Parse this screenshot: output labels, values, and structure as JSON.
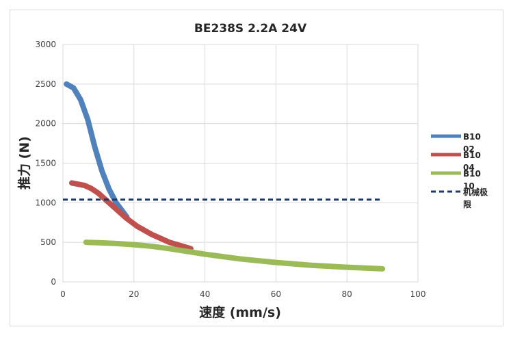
{
  "chart_data": {
    "type": "line",
    "title": "BE238S 2.2A 24V",
    "xlabel": "速度 (mm/s)",
    "ylabel": "推力 (N)",
    "xlim": [
      0,
      100
    ],
    "ylim": [
      0,
      3000
    ],
    "x_ticks": [
      "0",
      "20",
      "40",
      "60",
      "80",
      "100"
    ],
    "y_ticks": [
      "0",
      "500",
      "1000",
      "1500",
      "2000",
      "2500",
      "3000"
    ],
    "grid": true,
    "legend_position": "right",
    "series": [
      {
        "name": "B1002",
        "color": "#4f81bd",
        "style": "solid",
        "x": [
          1,
          3,
          5,
          7,
          9,
          11,
          13,
          15,
          17,
          18
        ],
        "y": [
          2500,
          2450,
          2300,
          2050,
          1700,
          1400,
          1170,
          1000,
          880,
          820
        ]
      },
      {
        "name": "B1004",
        "color": "#c0504d",
        "style": "solid",
        "x": [
          2.5,
          6,
          8,
          10,
          12,
          15,
          18,
          21,
          25,
          30,
          36
        ],
        "y": [
          1250,
          1220,
          1180,
          1120,
          1040,
          920,
          800,
          700,
          600,
          500,
          420
        ]
      },
      {
        "name": "B1010",
        "color": "#9bbb59",
        "style": "solid",
        "x": [
          6.5,
          10,
          15,
          20,
          25,
          30,
          35,
          40,
          50,
          60,
          70,
          80,
          90
        ],
        "y": [
          500,
          495,
          485,
          470,
          450,
          420,
          385,
          350,
          290,
          245,
          210,
          185,
          165
        ]
      },
      {
        "name": "机械极限",
        "color": "#1f3864",
        "style": "dashed",
        "x": [
          0,
          90
        ],
        "y": [
          1040,
          1040
        ]
      }
    ]
  }
}
